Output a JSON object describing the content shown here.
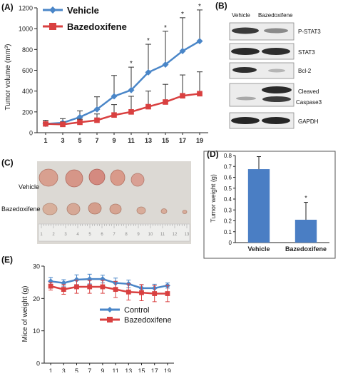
{
  "panels": {
    "a": "(A)",
    "b": "(B)",
    "c": "(C)",
    "d": "(D)",
    "e": "(E)"
  },
  "colors": {
    "vehicle": "#4a86c8",
    "bazedoxifene": "#d94040",
    "bar": "#4a7ec4",
    "ruler": "#e8e8e8"
  },
  "blot": {
    "col_headers": [
      "Vehicle",
      "Bazedoxifene"
    ],
    "rows": [
      {
        "label": "P-STAT3"
      },
      {
        "label": "STAT3"
      },
      {
        "label": "Bcl-2"
      },
      {
        "label": "Cleaved",
        "label2": "Caspase3"
      },
      {
        "label": "GAPDH"
      }
    ]
  },
  "photo": {
    "row_labels": [
      "Vehicle",
      "Bazedoxifene"
    ],
    "ruler_numbers": [
      "1",
      "2",
      "3",
      "4",
      "5",
      "6",
      "7",
      "8",
      "9",
      "10",
      "11",
      "12",
      "13"
    ]
  },
  "chart_data": [
    {
      "panel": "A",
      "type": "line",
      "x": [
        1,
        3,
        5,
        7,
        9,
        11,
        13,
        15,
        17,
        19
      ],
      "xlim": [
        0,
        20
      ],
      "ylim": [
        0,
        1200
      ],
      "yticks": [
        0,
        200,
        400,
        600,
        800,
        1000,
        1200
      ],
      "ylabel": "Tumor volume (mm³)",
      "legend_position": "top-left",
      "series": [
        {
          "name": "Vehicle",
          "values": [
            85,
            95,
            150,
            225,
            350,
            410,
            580,
            655,
            785,
            880
          ],
          "errors": [
            35,
            40,
            60,
            120,
            200,
            220,
            270,
            320,
            320,
            300
          ]
        },
        {
          "name": "Bazedoxifene",
          "values": [
            85,
            80,
            100,
            120,
            170,
            200,
            250,
            295,
            355,
            375
          ],
          "errors": [
            15,
            25,
            30,
            60,
            100,
            150,
            150,
            170,
            200,
            210
          ]
        }
      ],
      "significance": [
        {
          "x": 11,
          "label": "*"
        },
        {
          "x": 13,
          "label": "*"
        },
        {
          "x": 15,
          "label": "*"
        },
        {
          "x": 17,
          "label": "*"
        },
        {
          "x": 19,
          "label": "*"
        }
      ]
    },
    {
      "panel": "D",
      "type": "bar",
      "categories": [
        "Vehicle",
        "Bazedoxifene"
      ],
      "values": [
        0.675,
        0.21
      ],
      "errors": [
        0.115,
        0.16
      ],
      "ylim": [
        0,
        0.8
      ],
      "yticks": [
        0,
        0.1,
        0.2,
        0.3,
        0.4,
        0.5,
        0.6,
        0.7,
        0.8
      ],
      "ylabel": "Tumor weight (g)",
      "significance": [
        {
          "category": "Bazedoxifene",
          "label": "*"
        }
      ]
    },
    {
      "panel": "E",
      "type": "line",
      "x": [
        1,
        3,
        5,
        7,
        9,
        11,
        13,
        15,
        17,
        19
      ],
      "xlim": [
        0,
        20
      ],
      "ylim": [
        0,
        30
      ],
      "yticks": [
        0,
        10,
        20,
        30
      ],
      "ylabel": "Mice of weight (g)",
      "legend_position": "center",
      "series": [
        {
          "name": "Control",
          "values": [
            25.3,
            24.8,
            25.8,
            26.0,
            26.0,
            24.8,
            24.5,
            23.2,
            23.2,
            24.0
          ],
          "errors": [
            1.2,
            1.0,
            1.5,
            1.5,
            1.2,
            1.5,
            1.2,
            1.0,
            1.2,
            0.8
          ]
        },
        {
          "name": "Bazedoxifene",
          "values": [
            23.8,
            22.8,
            23.6,
            23.6,
            23.6,
            22.8,
            22.0,
            21.8,
            21.5,
            21.5
          ],
          "errors": [
            1.2,
            1.5,
            2.0,
            2.0,
            2.0,
            2.5,
            2.5,
            2.5,
            2.5,
            2.5
          ]
        }
      ]
    }
  ]
}
